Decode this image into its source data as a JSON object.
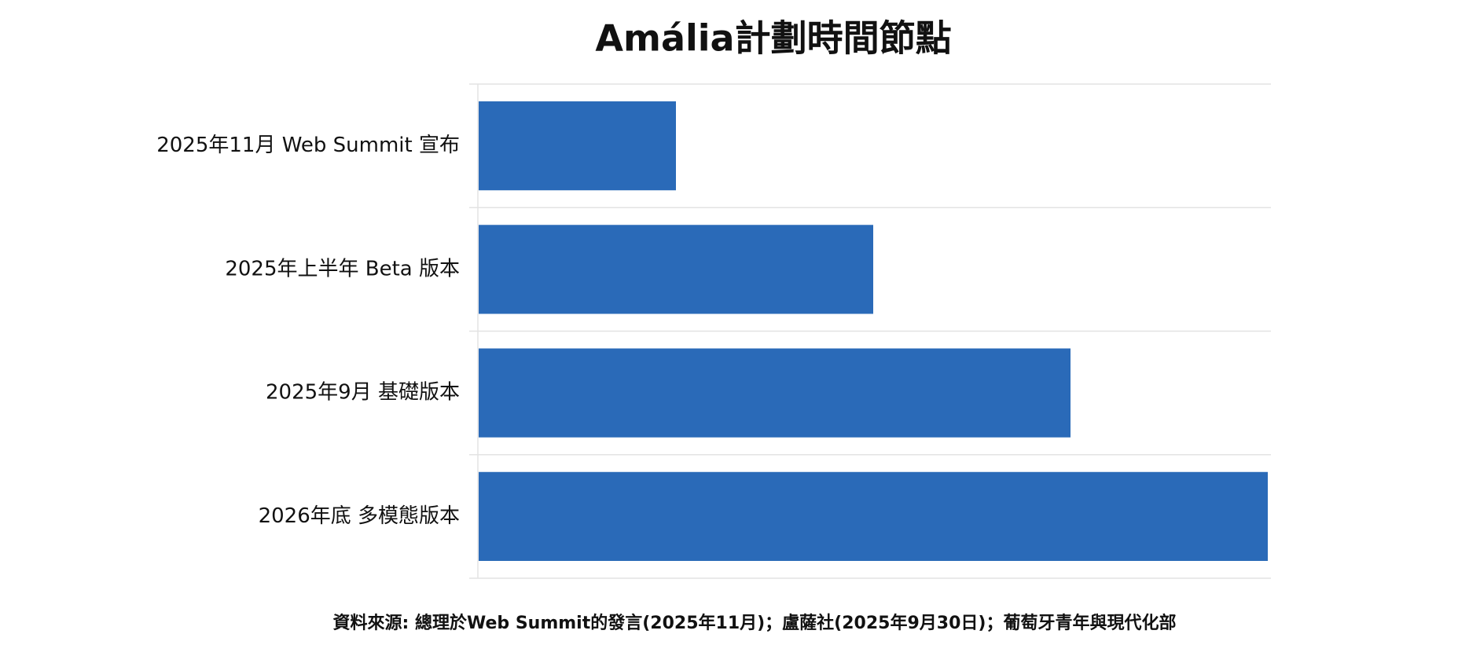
{
  "chart_data": {
    "type": "bar",
    "orientation": "horizontal",
    "title": "Amália計劃時間節點",
    "categories": [
      "2025年11月 Web Summit 宣布",
      "2025年上半年 Beta 版本",
      "2025年9月 基礎版本",
      "2026年底 多模態版本"
    ],
    "values": [
      1,
      2,
      3,
      4
    ],
    "color": "#2a6ab8",
    "xlim": [
      0,
      4
    ],
    "source": "資料來源: 總理於Web Summit的發言(2025年11月)；盧薩社(2025年9月30日)；葡萄牙青年與現代化部"
  }
}
